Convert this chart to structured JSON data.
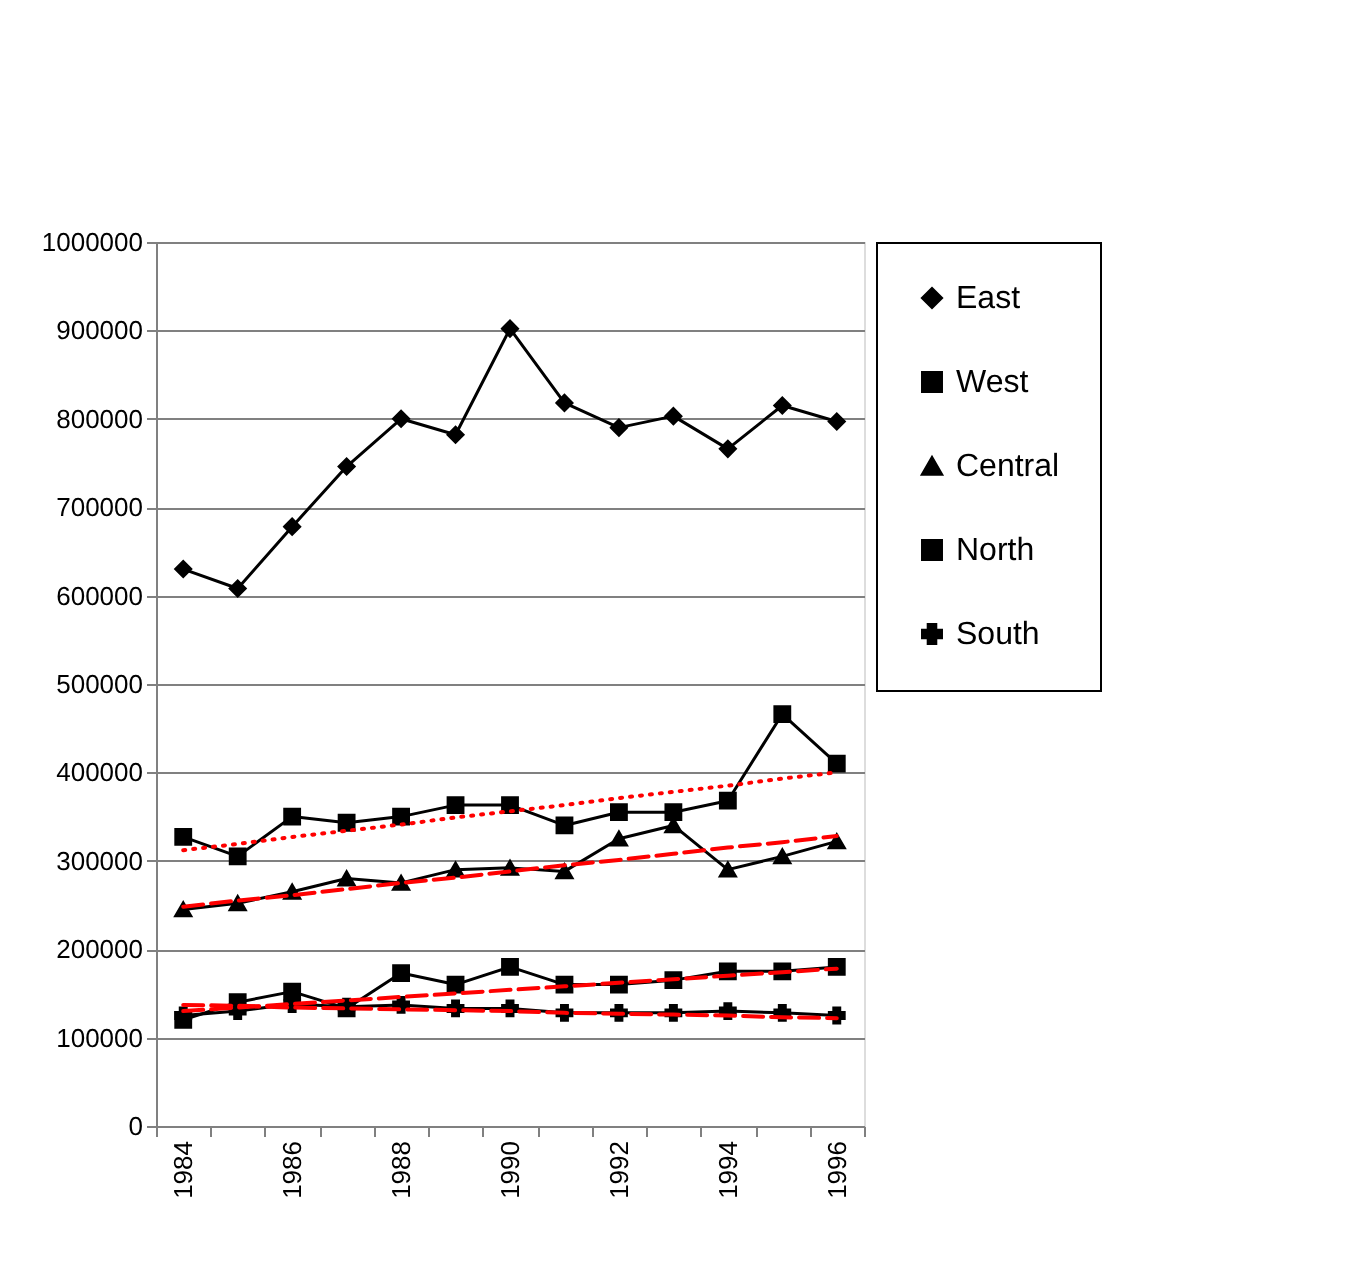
{
  "chart_data": {
    "type": "line",
    "categories": [
      "1984",
      null,
      "1986",
      null,
      "1988",
      null,
      "1990",
      null,
      "1992",
      null,
      "1994",
      null,
      "1996"
    ],
    "series": [
      {
        "name": "East",
        "color": "#000000",
        "marker": "diamond",
        "values": [
          630000,
          608000,
          678000,
          746000,
          800000,
          782000,
          902000,
          818000,
          790000,
          803000,
          766000,
          815000,
          797000
        ]
      },
      {
        "name": "West",
        "color": "#000000",
        "marker": "square",
        "values": [
          327000,
          305000,
          350000,
          343000,
          350000,
          363000,
          363000,
          340000,
          355000,
          355000,
          368000,
          466000,
          410000
        ]
      },
      {
        "name": "Central",
        "color": "#000000",
        "marker": "triangle",
        "values": [
          245000,
          252000,
          265000,
          280000,
          275000,
          290000,
          292000,
          288000,
          325000,
          340000,
          290000,
          305000,
          322000
        ]
      },
      {
        "name": "North",
        "color": "#000000",
        "marker": "square",
        "values": [
          120000,
          140000,
          152000,
          133000,
          173000,
          160000,
          180000,
          160000,
          160000,
          165000,
          175000,
          175000,
          180000
        ]
      },
      {
        "name": "South",
        "color": "#000000",
        "marker": "cross",
        "values": [
          125000,
          130000,
          138000,
          135000,
          137000,
          133000,
          133000,
          128000,
          128000,
          128000,
          130000,
          128000,
          125000
        ]
      },
      {
        "type": "line",
        "color": "#ff0000",
        "line_style": "dotted",
        "marker": "none",
        "values": [
          312000,
          319000,
          327000,
          334000,
          341000,
          349000,
          356000,
          363000,
          371000,
          378000,
          385000,
          393000,
          400000
        ]
      },
      {
        "type": "line",
        "color": "#ff0000",
        "line_style": "dashed",
        "marker": "none",
        "values": [
          248000,
          255000,
          261000,
          268000,
          275000,
          281000,
          288000,
          295000,
          301000,
          308000,
          315000,
          321000,
          328000
        ]
      },
      {
        "type": "line",
        "color": "#ff0000",
        "line_style": "dashed",
        "marker": "none",
        "values": [
          130000,
          134000,
          138000,
          142000,
          146000,
          150000,
          154000,
          158000,
          162000,
          166000,
          170000,
          174000,
          178000
        ]
      },
      {
        "type": "line",
        "color": "#ff0000",
        "line_style": "dashed",
        "marker": "none",
        "values": [
          137000,
          136000,
          134000,
          133000,
          132000,
          131000,
          130000,
          128000,
          127000,
          126000,
          125000,
          123000,
          122000
        ]
      }
    ],
    "ylim": [
      0,
      1000000
    ],
    "yticks": [
      0,
      100000,
      200000,
      300000,
      400000,
      500000,
      600000,
      700000,
      800000,
      900000,
      1000000
    ],
    "grid": "y",
    "legend": "right",
    "line_style": "solid"
  }
}
